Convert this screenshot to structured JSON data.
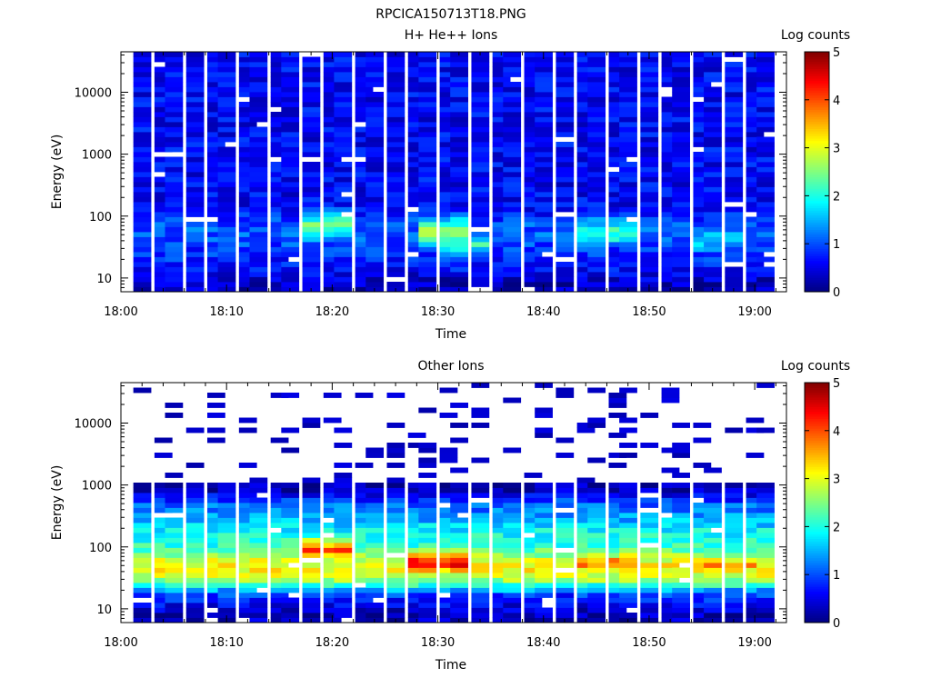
{
  "figure_title": "RPCICA150713T18.PNG",
  "chart_data": [
    {
      "type": "heatmap",
      "title": "H+ He++ Ions",
      "xlabel": "Time",
      "ylabel": "Energy (eV)",
      "colorbar_label": "Log counts",
      "y_scale": "log",
      "ylim": [
        6,
        45000
      ],
      "xlim": [
        "18:00",
        "19:03"
      ],
      "x_ticks": [
        "18:00",
        "18:10",
        "18:20",
        "18:30",
        "18:40",
        "18:50",
        "19:00"
      ],
      "y_ticks": [
        "10",
        "100",
        "1000",
        "10000"
      ],
      "colorbar_range": [
        0,
        5
      ],
      "colorbar_ticks": [
        "0",
        "1",
        "2",
        "3",
        "4",
        "5"
      ],
      "colormap": "jet",
      "time_columns": [
        "18:02",
        "18:04",
        "18:05",
        "18:07",
        "18:09",
        "18:10",
        "18:12",
        "18:13",
        "18:15",
        "18:16",
        "18:18",
        "18:20",
        "18:21",
        "18:23",
        "18:24",
        "18:26",
        "18:28",
        "18:29",
        "18:31",
        "18:32",
        "18:34",
        "18:36",
        "18:37",
        "18:39",
        "18:40",
        "18:42",
        "18:44",
        "18:45",
        "18:47",
        "18:48",
        "18:50",
        "18:52",
        "18:53",
        "18:55",
        "18:56",
        "18:58",
        "19:00",
        "19:01"
      ],
      "energy_profile_eV": [
        8,
        10,
        13,
        17,
        22,
        30,
        40,
        55,
        75,
        100,
        140,
        200,
        300,
        500,
        800,
        1500,
        3000,
        6000,
        12000,
        25000,
        40000
      ],
      "energy_profile_log_counts": [
        0.3,
        0.4,
        0.6,
        0.8,
        0.8,
        0.9,
        1.0,
        1.1,
        1.0,
        0.8,
        0.6,
        0.6,
        0.6,
        0.6,
        0.6,
        0.6,
        0.6,
        0.6,
        0.6,
        0.6,
        0.6
      ],
      "enhancements": [
        {
          "time": "18:20",
          "energy_eV": 70,
          "log_counts": 2.6
        },
        {
          "time": "18:31",
          "energy_eV": 55,
          "log_counts": 2.9
        },
        {
          "time": "18:46",
          "energy_eV": 55,
          "log_counts": 2.4
        },
        {
          "time": "18:33",
          "energy_eV": 35,
          "log_counts": 2.0
        },
        {
          "time": "18:57",
          "energy_eV": 40,
          "log_counts": 1.8
        }
      ]
    },
    {
      "type": "heatmap",
      "title": "Other Ions",
      "xlabel": "Time",
      "ylabel": "Energy (eV)",
      "colorbar_label": "Log counts",
      "y_scale": "log",
      "ylim": [
        6,
        45000
      ],
      "xlim": [
        "18:00",
        "19:03"
      ],
      "x_ticks": [
        "18:00",
        "18:10",
        "18:20",
        "18:30",
        "18:40",
        "18:50",
        "19:00"
      ],
      "y_ticks": [
        "10",
        "100",
        "1000",
        "10000"
      ],
      "colorbar_range": [
        0,
        5
      ],
      "colorbar_ticks": [
        "0",
        "1",
        "2",
        "3",
        "4",
        "5"
      ],
      "colormap": "jet",
      "time_columns": [
        "18:02",
        "18:04",
        "18:05",
        "18:07",
        "18:09",
        "18:10",
        "18:12",
        "18:13",
        "18:15",
        "18:16",
        "18:18",
        "18:20",
        "18:21",
        "18:23",
        "18:24",
        "18:26",
        "18:28",
        "18:29",
        "18:31",
        "18:32",
        "18:34",
        "18:36",
        "18:37",
        "18:39",
        "18:40",
        "18:42",
        "18:44",
        "18:45",
        "18:47",
        "18:48",
        "18:50",
        "18:52",
        "18:53",
        "18:55",
        "18:56",
        "18:58",
        "19:00",
        "19:01"
      ],
      "energy_profile_eV": [
        8,
        10,
        13,
        17,
        22,
        30,
        40,
        55,
        75,
        100,
        140,
        200,
        300,
        500,
        800,
        1500,
        3000,
        6000,
        12000,
        25000,
        40000
      ],
      "energy_profile_log_counts": [
        0.3,
        0.4,
        0.7,
        0.9,
        1.8,
        2.7,
        3.1,
        3.1,
        2.6,
        2.1,
        2.0,
        1.8,
        1.4,
        1.1,
        0.3,
        0.2,
        0.2,
        0.2,
        0.2,
        0.2,
        0.2
      ],
      "enhancements": [
        {
          "time": "18:20",
          "energy_eV": 90,
          "log_counts": 4.1
        },
        {
          "time": "18:30",
          "energy_eV": 55,
          "log_counts": 4.6
        },
        {
          "time": "18:46",
          "energy_eV": 55,
          "log_counts": 4.0
        },
        {
          "time": "18:58",
          "energy_eV": 50,
          "log_counts": 3.8
        },
        {
          "time": "18:08",
          "energy_eV": 40,
          "log_counts": 3.4
        }
      ]
    }
  ]
}
